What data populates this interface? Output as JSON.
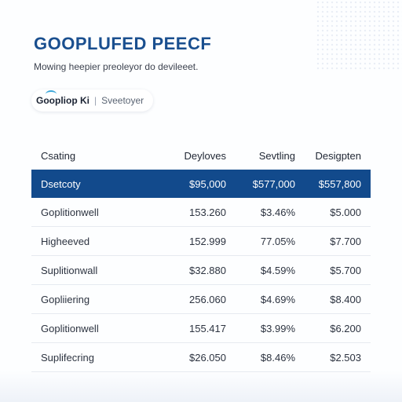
{
  "header": {
    "title": "GOOPLUFED PEECF",
    "subtitle": "Mowing heepier preoleyor do devileeet."
  },
  "pill": {
    "brand": "Goopliop Ki",
    "separator": "|",
    "item": "Sveetoyer"
  },
  "table": {
    "columns": [
      "Csating",
      "Deyloves",
      "Sevtling",
      "Desigpten"
    ],
    "highlight_row": {
      "cells": [
        "Dsetcoty",
        "$95,000",
        "$577,000",
        "$557,800"
      ],
      "color": "#124a8c"
    },
    "rows": [
      {
        "cells": [
          "Goplitionwell",
          "153.260",
          "$3.46%",
          "$5.000"
        ]
      },
      {
        "cells": [
          "Higheeved",
          "152.999",
          "77.05%",
          "$7.700"
        ]
      },
      {
        "cells": [
          "Suplitionwall",
          "$32.880",
          "$4.59%",
          "$5.700"
        ]
      },
      {
        "cells": [
          "Gopliiering",
          "256.060",
          "$4.69%",
          "$8.400"
        ]
      },
      {
        "cells": [
          "Goplitionwell",
          "155.417",
          "$3.99%",
          "$6.200"
        ]
      },
      {
        "cells": [
          "Suplifecring",
          "$26.050",
          "$8.46%",
          "$2.503"
        ]
      }
    ]
  },
  "colors": {
    "accent": "#1a4f8f",
    "logo_arc": "#3ba6d8"
  }
}
